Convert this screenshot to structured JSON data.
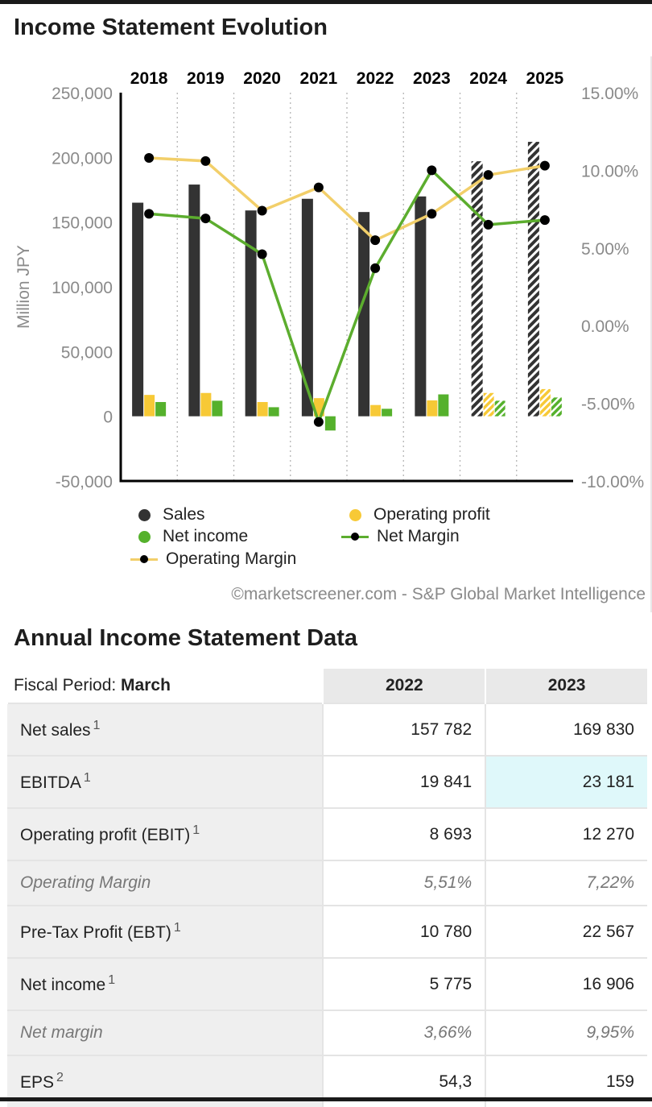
{
  "chart_title": "Income Statement Evolution",
  "table_title": "Annual Income Statement Data",
  "credit": "©marketscreener.com - S&P Global Market Intelligence",
  "colors": {
    "sales": "#333333",
    "operating_profit": "#f7c936",
    "net_income": "#55b12c",
    "operating_margin_line": "#f2cf6a",
    "net_margin_line": "#5cad2e"
  },
  "chart_data": {
    "type": "bar",
    "categories": [
      "2018",
      "2019",
      "2020",
      "2021",
      "2022",
      "2023",
      "2024",
      "2025"
    ],
    "estimated_from_index": 6,
    "ylabel": "Million JPY",
    "ylim": [
      -50000,
      250000
    ],
    "yticks": [
      "250,000",
      "200,000",
      "150,000",
      "100,000",
      "50,000",
      "0",
      "-50,000"
    ],
    "y2lim": [
      -10,
      15
    ],
    "y2ticks": [
      "15.00%",
      "10.00%",
      "5.00%",
      "0.00%",
      "-5.00%",
      "-10.00%"
    ],
    "grid": "vertical dotted",
    "legend_position": "bottom",
    "series": [
      {
        "name": "Sales",
        "kind": "bar",
        "axis": "left",
        "values": [
          165000,
          179000,
          159000,
          168000,
          157782,
          169830,
          197000,
          212000
        ]
      },
      {
        "name": "Operating profit",
        "kind": "bar",
        "axis": "left",
        "values": [
          16500,
          18000,
          11000,
          14000,
          8693,
          12270,
          18000,
          21000
        ]
      },
      {
        "name": "Net income",
        "kind": "bar",
        "axis": "left",
        "values": [
          11000,
          12000,
          7000,
          -11000,
          5775,
          16906,
          12000,
          14500
        ]
      },
      {
        "name": "Operating Margin",
        "kind": "line",
        "axis": "right",
        "values": [
          10.8,
          10.6,
          7.4,
          8.9,
          5.5,
          7.2,
          9.7,
          10.3
        ]
      },
      {
        "name": "Net Margin",
        "kind": "line",
        "axis": "right",
        "values": [
          7.2,
          6.9,
          4.6,
          -6.2,
          3.7,
          10.0,
          6.5,
          6.8
        ]
      }
    ]
  },
  "legend": [
    {
      "label": "Sales"
    },
    {
      "label": "Operating profit"
    },
    {
      "label": "Net income"
    },
    {
      "label": "Net Margin"
    },
    {
      "label": "Operating Margin"
    }
  ],
  "table": {
    "fiscal_label": "Fiscal Period: ",
    "fiscal_value": "March",
    "columns": [
      "2022",
      "2023"
    ],
    "rows": [
      {
        "label": "Net sales",
        "note": "1",
        "values": [
          "157 782",
          "169 830"
        ]
      },
      {
        "label": "EBITDA",
        "note": "1",
        "values": [
          "19 841",
          "23 181"
        ]
      },
      {
        "label": "Operating profit (EBIT)",
        "note": "1",
        "values": [
          "8 693",
          "12 270"
        ]
      },
      {
        "label": "Operating Margin",
        "note": "",
        "values": [
          "5,51%",
          "7,22%"
        ]
      },
      {
        "label": "Pre-Tax Profit (EBT)",
        "note": "1",
        "values": [
          "10 780",
          "22 567"
        ]
      },
      {
        "label": "Net income",
        "note": "1",
        "values": [
          "5 775",
          "16 906"
        ]
      },
      {
        "label": "Net margin",
        "note": "",
        "values": [
          "3,66%",
          "9,95%"
        ]
      },
      {
        "label": "EPS",
        "note": "2",
        "values": [
          "54,3",
          "159"
        ]
      }
    ]
  }
}
